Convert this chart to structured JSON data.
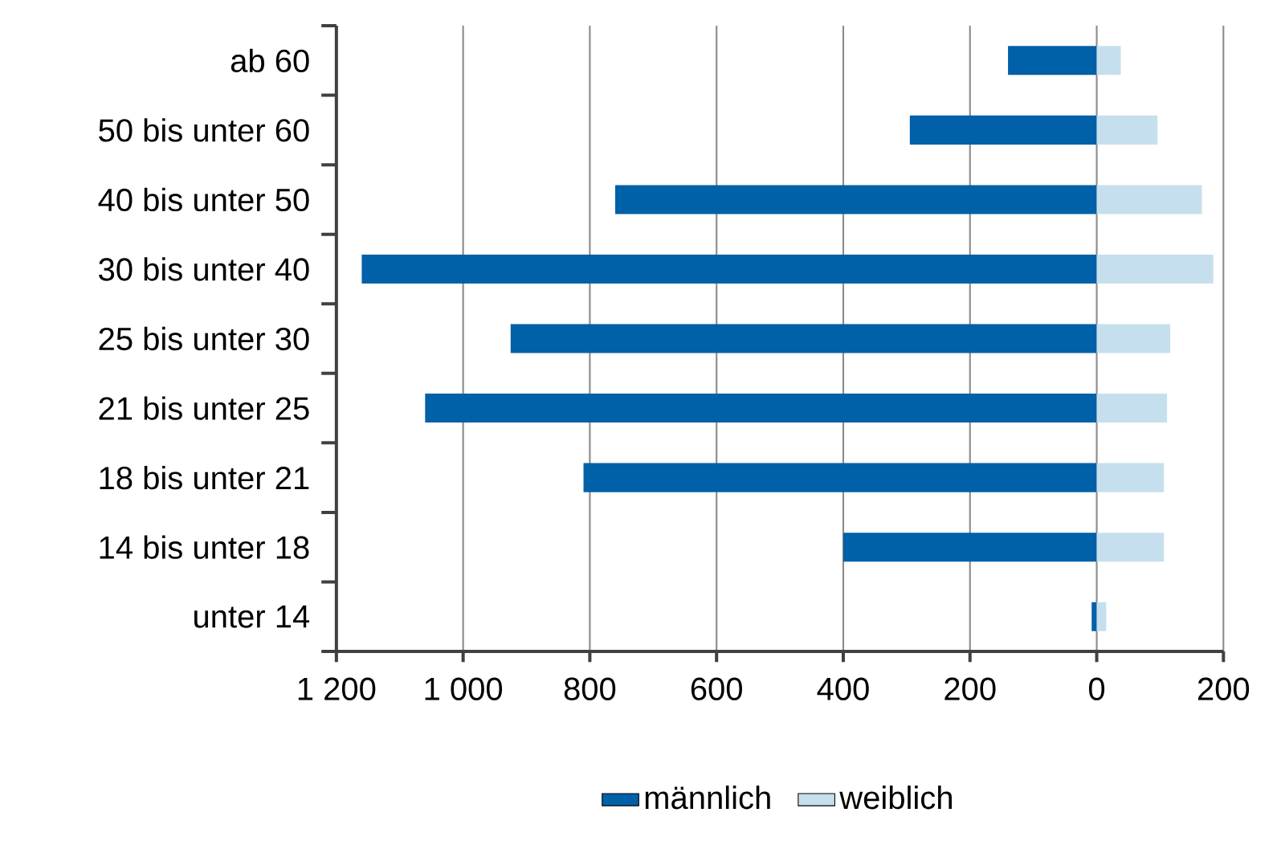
{
  "chart_data": {
    "type": "bar",
    "orientation": "horizontal",
    "categories": [
      "ab 60",
      "50 bis unter 60",
      "40 bis unter 50",
      "30 bis unter 40",
      "25 bis unter 30",
      "21 bis unter 25",
      "18 bis unter 21",
      "14 bis unter 18",
      "unter 14"
    ],
    "series": [
      {
        "name": "männlich",
        "color": "#0060a8",
        "values": [
          -140,
          -295,
          -760,
          -1160,
          -925,
          -1060,
          -810,
          -400,
          -8
        ]
      },
      {
        "name": "weiblich",
        "color": "#c6dfee",
        "values": [
          38,
          96,
          166,
          184,
          116,
          111,
          106,
          106,
          15
        ]
      }
    ],
    "xlim": [
      -1200,
      200
    ],
    "xticks": [
      {
        "value": -1200,
        "label": "1 200"
      },
      {
        "value": -1000,
        "label": "1 000"
      },
      {
        "value": -800,
        "label": "800"
      },
      {
        "value": -600,
        "label": "600"
      },
      {
        "value": -400,
        "label": "400"
      },
      {
        "value": -200,
        "label": "200"
      },
      0,
      200
    ],
    "grid": "x",
    "legend": "bottom",
    "stacked": true
  }
}
